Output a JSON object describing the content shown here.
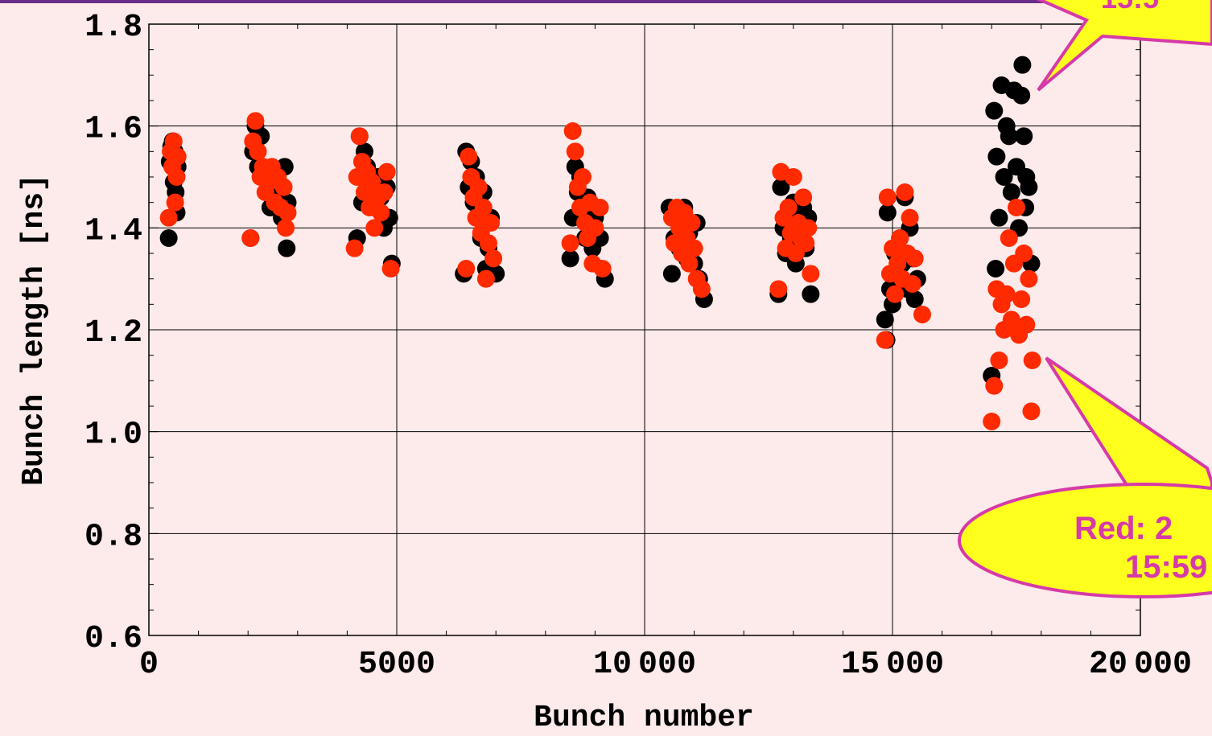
{
  "colors": {
    "background": "#FDEAEA",
    "top_border": "#6B2E8C",
    "series_black": "#000000",
    "series_red": "#FF2A00",
    "callout_fill": "#FFFF1E",
    "callout_stroke": "#D63AA8",
    "callout_text": "#D63AA8"
  },
  "callouts": {
    "top_right_text": "15:5",
    "bottom_right_line1": "Red: 2",
    "bottom_right_line2": "15:59"
  },
  "chart_data": {
    "type": "scatter",
    "title": "",
    "xlabel": "Bunch number",
    "ylabel": "Bunch length [ns]",
    "xlim": [
      0,
      20000
    ],
    "ylim": [
      0.6,
      1.8
    ],
    "x_ticks": [
      0,
      5000,
      10000,
      15000,
      20000
    ],
    "x_tick_labels": [
      "0",
      "5000",
      "10 000",
      "15 000",
      "20 000"
    ],
    "y_ticks": [
      0.6,
      0.8,
      1.0,
      1.2,
      1.4,
      1.6,
      1.8
    ],
    "y_tick_labels": [
      "0.6",
      "0.8",
      "1.0",
      "1.2",
      "1.4",
      "1.6",
      "1.8"
    ],
    "grid": true,
    "series": [
      {
        "color": "#000000",
        "points": [
          [
            400,
            1.38
          ],
          [
            420,
            1.53
          ],
          [
            450,
            1.56
          ],
          [
            480,
            1.57
          ],
          [
            500,
            1.49
          ],
          [
            520,
            1.55
          ],
          [
            540,
            1.47
          ],
          [
            560,
            1.43
          ],
          [
            580,
            1.52
          ],
          [
            2050,
            1.38
          ],
          [
            2100,
            1.55
          ],
          [
            2150,
            1.6
          ],
          [
            2200,
            1.52
          ],
          [
            2260,
            1.58
          ],
          [
            2330,
            1.5
          ],
          [
            2400,
            1.47
          ],
          [
            2450,
            1.44
          ],
          [
            2520,
            1.51
          ],
          [
            2560,
            1.46
          ],
          [
            2620,
            1.49
          ],
          [
            2680,
            1.42
          ],
          [
            2740,
            1.52
          ],
          [
            2780,
            1.36
          ],
          [
            2800,
            1.45
          ],
          [
            4200,
            1.38
          ],
          [
            4250,
            1.58
          ],
          [
            4300,
            1.45
          ],
          [
            4350,
            1.55
          ],
          [
            4400,
            1.52
          ],
          [
            4480,
            1.48
          ],
          [
            4550,
            1.44
          ],
          [
            4620,
            1.5
          ],
          [
            4680,
            1.46
          ],
          [
            4740,
            1.4
          ],
          [
            4800,
            1.48
          ],
          [
            4850,
            1.42
          ],
          [
            4900,
            1.33
          ],
          [
            6350,
            1.31
          ],
          [
            6400,
            1.55
          ],
          [
            6450,
            1.48
          ],
          [
            6500,
            1.53
          ],
          [
            6550,
            1.45
          ],
          [
            6600,
            1.5
          ],
          [
            6650,
            1.42
          ],
          [
            6700,
            1.38
          ],
          [
            6750,
            1.47
          ],
          [
            6800,
            1.32
          ],
          [
            6850,
            1.36
          ],
          [
            6900,
            1.42
          ],
          [
            7000,
            1.31
          ],
          [
            8500,
            1.34
          ],
          [
            8550,
            1.42
          ],
          [
            8600,
            1.52
          ],
          [
            8650,
            1.47
          ],
          [
            8700,
            1.5
          ],
          [
            8750,
            1.44
          ],
          [
            8800,
            1.38
          ],
          [
            8850,
            1.46
          ],
          [
            8900,
            1.4
          ],
          [
            8950,
            1.36
          ],
          [
            9000,
            1.42
          ],
          [
            9100,
            1.38
          ],
          [
            9200,
            1.3
          ],
          [
            10500,
            1.44
          ],
          [
            10550,
            1.31
          ],
          [
            10600,
            1.38
          ],
          [
            10650,
            1.42
          ],
          [
            10700,
            1.36
          ],
          [
            10750,
            1.4
          ],
          [
            10800,
            1.44
          ],
          [
            10850,
            1.34
          ],
          [
            10900,
            1.39
          ],
          [
            10950,
            1.36
          ],
          [
            11000,
            1.33
          ],
          [
            11050,
            1.41
          ],
          [
            11100,
            1.3
          ],
          [
            11200,
            1.26
          ],
          [
            12700,
            1.27
          ],
          [
            12750,
            1.48
          ],
          [
            12800,
            1.4
          ],
          [
            12850,
            1.35
          ],
          [
            12900,
            1.43
          ],
          [
            12950,
            1.38
          ],
          [
            13000,
            1.45
          ],
          [
            13050,
            1.33
          ],
          [
            13100,
            1.41
          ],
          [
            13150,
            1.37
          ],
          [
            13200,
            1.44
          ],
          [
            13250,
            1.36
          ],
          [
            13300,
            1.42
          ],
          [
            13350,
            1.27
          ],
          [
            14850,
            1.22
          ],
          [
            14880,
            1.18
          ],
          [
            14900,
            1.43
          ],
          [
            14950,
            1.28
          ],
          [
            15000,
            1.25
          ],
          [
            15050,
            1.35
          ],
          [
            15100,
            1.3
          ],
          [
            15150,
            1.38
          ],
          [
            15200,
            1.33
          ],
          [
            15250,
            1.46
          ],
          [
            15300,
            1.28
          ],
          [
            15350,
            1.4
          ],
          [
            15400,
            1.34
          ],
          [
            15450,
            1.26
          ],
          [
            15500,
            1.3
          ],
          [
            17000,
            1.11
          ],
          [
            17050,
            1.63
          ],
          [
            17080,
            1.32
          ],
          [
            17100,
            1.54
          ],
          [
            17150,
            1.42
          ],
          [
            17200,
            1.68
          ],
          [
            17250,
            1.5
          ],
          [
            17300,
            1.6
          ],
          [
            17350,
            1.58
          ],
          [
            17400,
            1.47
          ],
          [
            17450,
            1.67
          ],
          [
            17500,
            1.52
          ],
          [
            17550,
            1.4
          ],
          [
            17600,
            1.66
          ],
          [
            17620,
            1.72
          ],
          [
            17650,
            1.58
          ],
          [
            17680,
            1.44
          ],
          [
            17700,
            1.5
          ],
          [
            17750,
            1.48
          ],
          [
            17800,
            1.33
          ]
        ]
      },
      {
        "color": "#FF2A00",
        "points": [
          [
            400,
            1.42
          ],
          [
            440,
            1.55
          ],
          [
            470,
            1.52
          ],
          [
            500,
            1.57
          ],
          [
            530,
            1.45
          ],
          [
            560,
            1.5
          ],
          [
            580,
            1.54
          ],
          [
            2050,
            1.38
          ],
          [
            2100,
            1.57
          ],
          [
            2150,
            1.61
          ],
          [
            2200,
            1.55
          ],
          [
            2250,
            1.5
          ],
          [
            2300,
            1.52
          ],
          [
            2350,
            1.47
          ],
          [
            2420,
            1.49
          ],
          [
            2480,
            1.52
          ],
          [
            2540,
            1.45
          ],
          [
            2600,
            1.5
          ],
          [
            2660,
            1.44
          ],
          [
            2720,
            1.48
          ],
          [
            2760,
            1.4
          ],
          [
            2800,
            1.43
          ],
          [
            4150,
            1.36
          ],
          [
            4200,
            1.5
          ],
          [
            4250,
            1.58
          ],
          [
            4300,
            1.53
          ],
          [
            4350,
            1.47
          ],
          [
            4400,
            1.51
          ],
          [
            4450,
            1.44
          ],
          [
            4500,
            1.49
          ],
          [
            4550,
            1.4
          ],
          [
            4620,
            1.46
          ],
          [
            4680,
            1.43
          ],
          [
            4750,
            1.47
          ],
          [
            4800,
            1.51
          ],
          [
            4880,
            1.32
          ],
          [
            6400,
            1.32
          ],
          [
            6450,
            1.54
          ],
          [
            6500,
            1.5
          ],
          [
            6550,
            1.46
          ],
          [
            6600,
            1.42
          ],
          [
            6650,
            1.48
          ],
          [
            6700,
            1.39
          ],
          [
            6750,
            1.44
          ],
          [
            6800,
            1.3
          ],
          [
            6850,
            1.37
          ],
          [
            6900,
            1.41
          ],
          [
            6950,
            1.34
          ],
          [
            8500,
            1.37
          ],
          [
            8550,
            1.59
          ],
          [
            8600,
            1.55
          ],
          [
            8650,
            1.48
          ],
          [
            8700,
            1.44
          ],
          [
            8750,
            1.5
          ],
          [
            8800,
            1.41
          ],
          [
            8850,
            1.38
          ],
          [
            8900,
            1.45
          ],
          [
            8950,
            1.33
          ],
          [
            9000,
            1.4
          ],
          [
            9100,
            1.44
          ],
          [
            9150,
            1.32
          ],
          [
            10550,
            1.42
          ],
          [
            10600,
            1.37
          ],
          [
            10650,
            1.44
          ],
          [
            10700,
            1.4
          ],
          [
            10750,
            1.35
          ],
          [
            10800,
            1.43
          ],
          [
            10850,
            1.38
          ],
          [
            10900,
            1.33
          ],
          [
            10950,
            1.41
          ],
          [
            11000,
            1.36
          ],
          [
            11050,
            1.3
          ],
          [
            11150,
            1.28
          ],
          [
            12700,
            1.28
          ],
          [
            12750,
            1.51
          ],
          [
            12800,
            1.42
          ],
          [
            12850,
            1.36
          ],
          [
            12900,
            1.44
          ],
          [
            12950,
            1.39
          ],
          [
            13000,
            1.5
          ],
          [
            13050,
            1.35
          ],
          [
            13100,
            1.41
          ],
          [
            13150,
            1.38
          ],
          [
            13200,
            1.46
          ],
          [
            13250,
            1.37
          ],
          [
            13300,
            1.4
          ],
          [
            13350,
            1.31
          ],
          [
            14850,
            1.18
          ],
          [
            14900,
            1.46
          ],
          [
            14950,
            1.31
          ],
          [
            15000,
            1.36
          ],
          [
            15050,
            1.27
          ],
          [
            15100,
            1.33
          ],
          [
            15150,
            1.38
          ],
          [
            15200,
            1.3
          ],
          [
            15250,
            1.47
          ],
          [
            15300,
            1.35
          ],
          [
            15350,
            1.42
          ],
          [
            15400,
            1.29
          ],
          [
            15450,
            1.34
          ],
          [
            15600,
            1.23
          ],
          [
            17000,
            1.02
          ],
          [
            17050,
            1.09
          ],
          [
            17100,
            1.28
          ],
          [
            17150,
            1.14
          ],
          [
            17200,
            1.25
          ],
          [
            17250,
            1.2
          ],
          [
            17300,
            1.27
          ],
          [
            17350,
            1.38
          ],
          [
            17400,
            1.22
          ],
          [
            17450,
            1.33
          ],
          [
            17500,
            1.44
          ],
          [
            17550,
            1.19
          ],
          [
            17600,
            1.26
          ],
          [
            17650,
            1.35
          ],
          [
            17700,
            1.21
          ],
          [
            17750,
            1.3
          ],
          [
            17800,
            1.04
          ],
          [
            17820,
            1.14
          ]
        ]
      }
    ]
  }
}
